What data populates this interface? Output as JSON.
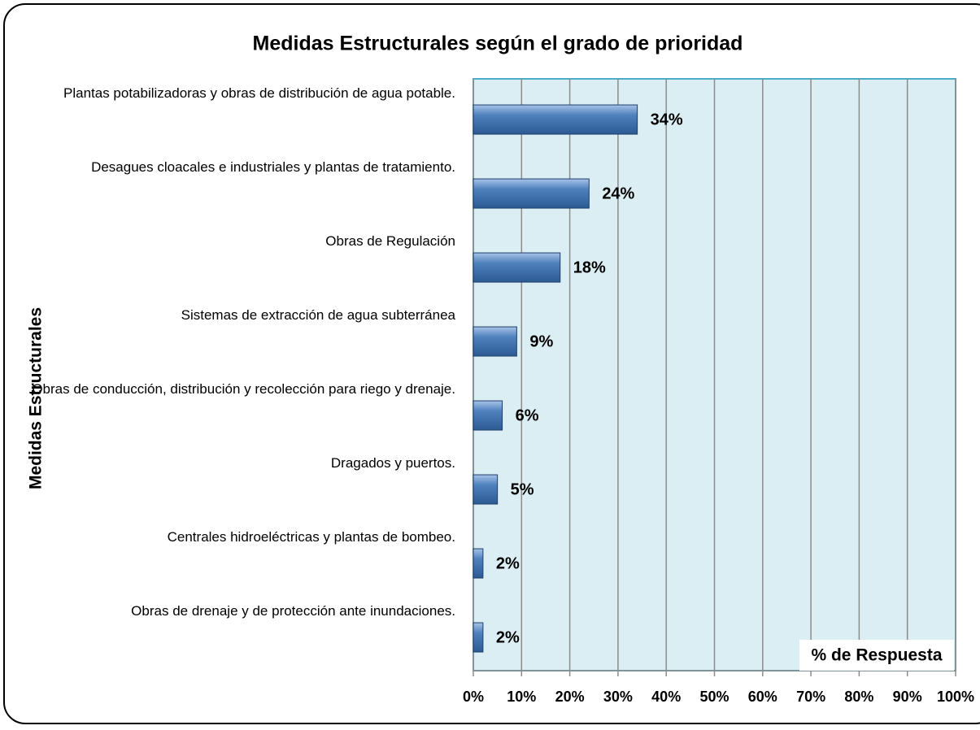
{
  "chart_data": {
    "type": "bar",
    "orientation": "horizontal",
    "title": "Medidas Estructurales según el grado de prioridad",
    "y_label": "Medidas Estructurales",
    "x_label": "% de Respuesta",
    "categories": [
      "Plantas potabilizadoras y obras de distribución de agua potable.",
      "Desagues cloacales e industriales y plantas de tratamiento.",
      "Obras de Regulación",
      "Sistemas de extracción de agua subterránea",
      "Obras de conducción, distribución y recolección para riego y drenaje.",
      "Dragados y puertos.",
      "Centrales hidroeléctricas y plantas de bombeo.",
      "Obras de drenaje y de protección ante inundaciones."
    ],
    "values": [
      34,
      24,
      18,
      9,
      6,
      5,
      2,
      2
    ],
    "value_labels": [
      "34%",
      "24%",
      "18%",
      "9%",
      "6%",
      "5%",
      "2%",
      "2%"
    ],
    "color": "#4f81bd",
    "xlim": [
      0,
      100
    ],
    "xticks": [
      {
        "value": 0,
        "label": "0%"
      },
      {
        "value": 10,
        "label": "10%"
      },
      {
        "value": 20,
        "label": "20%"
      },
      {
        "value": 30,
        "label": "30%"
      },
      {
        "value": 40,
        "label": "40%"
      },
      {
        "value": 50,
        "label": "50%"
      },
      {
        "value": 60,
        "label": "60%"
      },
      {
        "value": 70,
        "label": "70%"
      },
      {
        "value": 80,
        "label": "80%"
      },
      {
        "value": 90,
        "label": "90%"
      },
      {
        "value": 100,
        "label": "100%"
      }
    ],
    "grid": true
  }
}
